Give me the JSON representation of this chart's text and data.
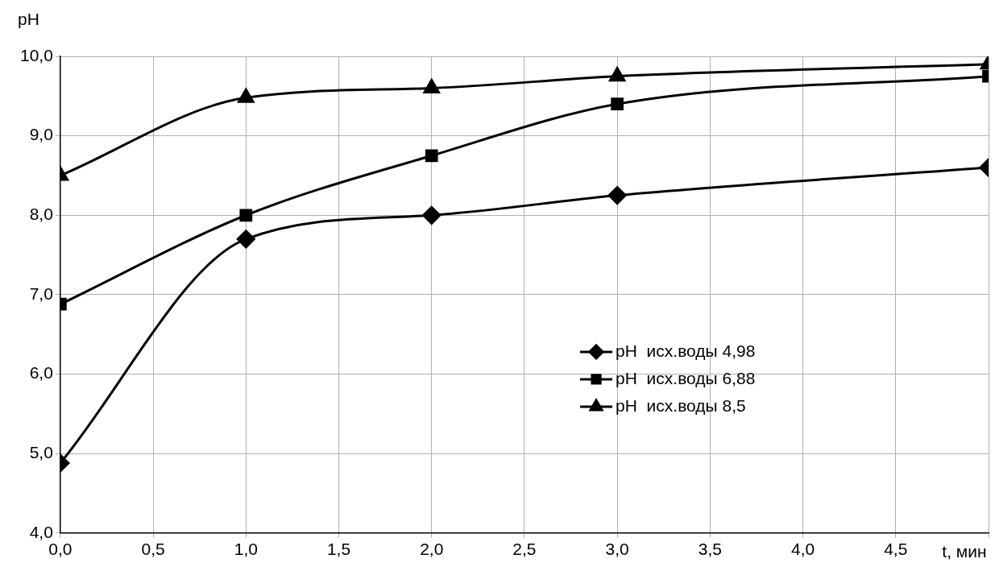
{
  "chart_data": {
    "type": "line",
    "xlabel": "t, мин",
    "ylabel": "pH",
    "x": [
      0,
      1,
      2,
      3,
      5
    ],
    "series": [
      {
        "name": "pH  исх.воды 4,98",
        "color": "#000000",
        "marker": "diamond",
        "values": [
          4.88,
          7.7,
          8.0,
          8.25,
          8.6
        ]
      },
      {
        "name": "pH  исх.воды 6,88",
        "color": "#000000",
        "marker": "square",
        "values": [
          6.88,
          8.0,
          8.75,
          9.4,
          9.75
        ]
      },
      {
        "name": "pH  исх.воды 8,5",
        "color": "#000000",
        "marker": "triangle",
        "values": [
          8.5,
          9.48,
          9.6,
          9.75,
          9.9
        ]
      }
    ],
    "xlim": [
      0,
      5
    ],
    "xticks": [
      {
        "value": 0,
        "label": "0,0"
      },
      {
        "value": 0.5,
        "label": "0,5"
      },
      {
        "value": 1,
        "label": "1,0"
      },
      {
        "value": 1.5,
        "label": "1,5"
      },
      {
        "value": 2,
        "label": "2,0"
      },
      {
        "value": 2.5,
        "label": "2,5"
      },
      {
        "value": 3,
        "label": "3,0"
      },
      {
        "value": 3.5,
        "label": "3,5"
      },
      {
        "value": 4,
        "label": "4,0"
      },
      {
        "value": 4.5,
        "label": "4,5"
      },
      {
        "value": 5,
        "label": null
      }
    ],
    "ylim": [
      4,
      10
    ],
    "yticks": [
      {
        "value": 4,
        "label": "4,0"
      },
      {
        "value": 5,
        "label": "5,0"
      },
      {
        "value": 6,
        "label": "6,0"
      },
      {
        "value": 7,
        "label": "7,0"
      },
      {
        "value": 8,
        "label": "8,0"
      },
      {
        "value": 9,
        "label": "9,0"
      },
      {
        "value": 10,
        "label": "10,0"
      }
    ],
    "grid": true,
    "legend": "right",
    "line_style": "solid"
  }
}
